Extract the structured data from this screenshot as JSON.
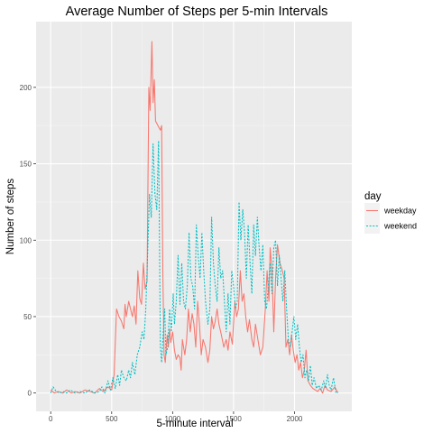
{
  "chart_data": {
    "type": "line",
    "title": "Average Number of Steps per 5-min Intervals",
    "xlabel": "5-minute interval",
    "ylabel": "Number of steps",
    "xlim": [
      -120,
      2470
    ],
    "ylim": [
      -12,
      243
    ],
    "x_ticks": [
      0,
      500,
      1000,
      1500,
      2000
    ],
    "x_tick_labels": [
      "0",
      "500",
      "1000",
      "1500",
      "2000"
    ],
    "y_ticks": [
      0,
      50,
      100,
      150,
      200
    ],
    "y_tick_labels": [
      "0",
      "50",
      "100",
      "150",
      "200"
    ],
    "grid": true,
    "legend": {
      "title": "day",
      "position": "right"
    },
    "series": [
      {
        "name": "weekday",
        "color": "#F8766D",
        "dash": "solid",
        "points": [
          [
            0,
            2
          ],
          [
            30,
            0
          ],
          [
            60,
            1
          ],
          [
            100,
            0
          ],
          [
            130,
            2
          ],
          [
            170,
            0
          ],
          [
            200,
            1
          ],
          [
            240,
            0
          ],
          [
            280,
            2
          ],
          [
            320,
            1
          ],
          [
            360,
            0
          ],
          [
            400,
            3
          ],
          [
            430,
            1
          ],
          [
            470,
            4
          ],
          [
            500,
            2
          ],
          [
            520,
            12
          ],
          [
            540,
            55
          ],
          [
            560,
            50
          ],
          [
            580,
            47
          ],
          [
            600,
            42
          ],
          [
            610,
            58
          ],
          [
            620,
            50
          ],
          [
            640,
            60
          ],
          [
            655,
            55
          ],
          [
            670,
            50
          ],
          [
            685,
            57
          ],
          [
            700,
            45
          ],
          [
            715,
            80
          ],
          [
            730,
            62
          ],
          [
            745,
            58
          ],
          [
            760,
            85
          ],
          [
            775,
            68
          ],
          [
            790,
            73
          ],
          [
            805,
            200
          ],
          [
            815,
            185
          ],
          [
            830,
            230
          ],
          [
            840,
            190
          ],
          [
            850,
            205
          ],
          [
            860,
            178
          ],
          [
            880,
            175
          ],
          [
            900,
            172
          ],
          [
            910,
            175
          ],
          [
            920,
            80
          ],
          [
            930,
            25
          ],
          [
            940,
            20
          ],
          [
            955,
            38
          ],
          [
            965,
            30
          ],
          [
            975,
            42
          ],
          [
            985,
            33
          ],
          [
            1000,
            40
          ],
          [
            1015,
            28
          ],
          [
            1030,
            22
          ],
          [
            1045,
            25
          ],
          [
            1060,
            23
          ],
          [
            1070,
            15
          ],
          [
            1080,
            35
          ],
          [
            1090,
            30
          ],
          [
            1100,
            25
          ],
          [
            1115,
            35
          ],
          [
            1130,
            55
          ],
          [
            1145,
            40
          ],
          [
            1160,
            52
          ],
          [
            1175,
            45
          ],
          [
            1190,
            30
          ],
          [
            1205,
            60
          ],
          [
            1220,
            45
          ],
          [
            1235,
            25
          ],
          [
            1250,
            35
          ],
          [
            1270,
            30
          ],
          [
            1290,
            20
          ],
          [
            1305,
            28
          ],
          [
            1320,
            50
          ],
          [
            1335,
            42
          ],
          [
            1350,
            47
          ],
          [
            1365,
            55
          ],
          [
            1380,
            45
          ],
          [
            1400,
            38
          ],
          [
            1420,
            30
          ],
          [
            1440,
            35
          ],
          [
            1455,
            28
          ],
          [
            1470,
            40
          ],
          [
            1490,
            32
          ],
          [
            1510,
            60
          ],
          [
            1525,
            50
          ],
          [
            1540,
            55
          ],
          [
            1555,
            80
          ],
          [
            1570,
            60
          ],
          [
            1585,
            65
          ],
          [
            1600,
            50
          ],
          [
            1615,
            40
          ],
          [
            1630,
            48
          ],
          [
            1650,
            35
          ],
          [
            1665,
            30
          ],
          [
            1680,
            45
          ],
          [
            1700,
            35
          ],
          [
            1720,
            25
          ],
          [
            1740,
            30
          ],
          [
            1760,
            55
          ],
          [
            1775,
            80
          ],
          [
            1790,
            60
          ],
          [
            1800,
            95
          ],
          [
            1815,
            80
          ],
          [
            1830,
            40
          ],
          [
            1845,
            75
          ],
          [
            1860,
            97
          ],
          [
            1880,
            85
          ],
          [
            1900,
            80
          ],
          [
            1915,
            75
          ],
          [
            1930,
            30
          ],
          [
            1945,
            35
          ],
          [
            1960,
            25
          ],
          [
            1975,
            38
          ],
          [
            1990,
            28
          ],
          [
            2005,
            20
          ],
          [
            2020,
            25
          ],
          [
            2035,
            15
          ],
          [
            2050,
            20
          ],
          [
            2065,
            10
          ],
          [
            2080,
            15
          ],
          [
            2095,
            28
          ],
          [
            2110,
            8
          ],
          [
            2130,
            5
          ],
          [
            2150,
            3
          ],
          [
            2170,
            2
          ],
          [
            2190,
            1
          ],
          [
            2210,
            3
          ],
          [
            2230,
            0
          ],
          [
            2250,
            5
          ],
          [
            2270,
            2
          ],
          [
            2300,
            1
          ],
          [
            2330,
            4
          ],
          [
            2355,
            0
          ]
        ]
      },
      {
        "name": "weekend",
        "color": "#00BFC4",
        "dash": "dotted",
        "points": [
          [
            0,
            0
          ],
          [
            20,
            4
          ],
          [
            45,
            1
          ],
          [
            70,
            0
          ],
          [
            100,
            1
          ],
          [
            130,
            0
          ],
          [
            160,
            2
          ],
          [
            200,
            0
          ],
          [
            240,
            1
          ],
          [
            280,
            0
          ],
          [
            320,
            2
          ],
          [
            360,
            0
          ],
          [
            400,
            1
          ],
          [
            420,
            4
          ],
          [
            445,
            0
          ],
          [
            470,
            8
          ],
          [
            490,
            2
          ],
          [
            510,
            10
          ],
          [
            530,
            3
          ],
          [
            550,
            12
          ],
          [
            565,
            5
          ],
          [
            580,
            15
          ],
          [
            600,
            10
          ],
          [
            620,
            8
          ],
          [
            640,
            15
          ],
          [
            655,
            10
          ],
          [
            670,
            20
          ],
          [
            690,
            12
          ],
          [
            710,
            25
          ],
          [
            730,
            30
          ],
          [
            750,
            40
          ],
          [
            765,
            35
          ],
          [
            780,
            55
          ],
          [
            795,
            90
          ],
          [
            810,
            130
          ],
          [
            825,
            115
          ],
          [
            840,
            163
          ],
          [
            855,
            130
          ],
          [
            870,
            120
          ],
          [
            885,
            165
          ],
          [
            900,
            30
          ],
          [
            910,
            20
          ],
          [
            920,
            35
          ],
          [
            935,
            55
          ],
          [
            945,
            25
          ],
          [
            960,
            30
          ],
          [
            975,
            55
          ],
          [
            990,
            40
          ],
          [
            1005,
            65
          ],
          [
            1015,
            45
          ],
          [
            1030,
            60
          ],
          [
            1045,
            90
          ],
          [
            1060,
            58
          ],
          [
            1075,
            85
          ],
          [
            1090,
            60
          ],
          [
            1105,
            55
          ],
          [
            1120,
            70
          ],
          [
            1135,
            105
          ],
          [
            1150,
            75
          ],
          [
            1165,
            70
          ],
          [
            1180,
            55
          ],
          [
            1195,
            110
          ],
          [
            1210,
            90
          ],
          [
            1225,
            75
          ],
          [
            1240,
            105
          ],
          [
            1255,
            80
          ],
          [
            1270,
            60
          ],
          [
            1290,
            45
          ],
          [
            1305,
            55
          ],
          [
            1320,
            115
          ],
          [
            1335,
            85
          ],
          [
            1350,
            70
          ],
          [
            1365,
            60
          ],
          [
            1380,
            95
          ],
          [
            1395,
            75
          ],
          [
            1410,
            80
          ],
          [
            1425,
            60
          ],
          [
            1440,
            40
          ],
          [
            1455,
            65
          ],
          [
            1470,
            45
          ],
          [
            1485,
            80
          ],
          [
            1500,
            70
          ],
          [
            1515,
            55
          ],
          [
            1530,
            60
          ],
          [
            1545,
            125
          ],
          [
            1560,
            100
          ],
          [
            1575,
            120
          ],
          [
            1590,
            105
          ],
          [
            1605,
            75
          ],
          [
            1620,
            110
          ],
          [
            1635,
            85
          ],
          [
            1650,
            65
          ],
          [
            1665,
            110
          ],
          [
            1680,
            90
          ],
          [
            1695,
            115
          ],
          [
            1710,
            95
          ],
          [
            1725,
            80
          ],
          [
            1740,
            97
          ],
          [
            1755,
            60
          ],
          [
            1770,
            55
          ],
          [
            1785,
            70
          ],
          [
            1800,
            85
          ],
          [
            1815,
            65
          ],
          [
            1830,
            95
          ],
          [
            1845,
            100
          ],
          [
            1860,
            70
          ],
          [
            1875,
            90
          ],
          [
            1890,
            75
          ],
          [
            1905,
            60
          ],
          [
            1920,
            80
          ],
          [
            1935,
            55
          ],
          [
            1950,
            35
          ],
          [
            1965,
            30
          ],
          [
            1980,
            40
          ],
          [
            1995,
            50
          ],
          [
            2010,
            35
          ],
          [
            2025,
            45
          ],
          [
            2040,
            30
          ],
          [
            2055,
            20
          ],
          [
            2070,
            25
          ],
          [
            2085,
            10
          ],
          [
            2100,
            15
          ],
          [
            2115,
            8
          ],
          [
            2130,
            18
          ],
          [
            2145,
            5
          ],
          [
            2160,
            10
          ],
          [
            2180,
            3
          ],
          [
            2200,
            5
          ],
          [
            2220,
            2
          ],
          [
            2240,
            8
          ],
          [
            2255,
            3
          ],
          [
            2270,
            12
          ],
          [
            2285,
            5
          ],
          [
            2300,
            2
          ],
          [
            2320,
            10
          ],
          [
            2340,
            0
          ],
          [
            2355,
            1
          ]
        ]
      }
    ]
  }
}
